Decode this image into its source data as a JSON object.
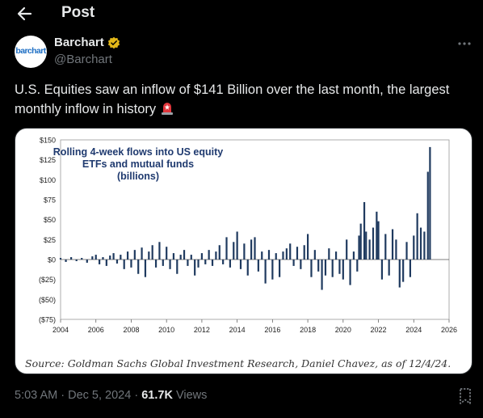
{
  "header": {
    "title": "Post",
    "back_icon": "arrow-left-icon"
  },
  "author": {
    "name": "Barchart",
    "handle": "@Barchart",
    "avatar_text": "barchart",
    "verified_color": "#e2b719"
  },
  "post": {
    "text": "U.S. Equities saw an inflow of $141 Billion over the last month, the largest monthly inflow in history",
    "emoji": "rotating-light-icon"
  },
  "chart_data": {
    "type": "bar",
    "title": [
      "Rolling 4-week flows into US equity",
      "ETFs and mutual funds",
      "(billions)"
    ],
    "source": "Source: Goldman Sachs Global Investment Research, Daniel Chavez,  as of 12/4/24.",
    "ylim": [
      -75,
      150
    ],
    "xlim": [
      2004,
      2026
    ],
    "y_tick_labels": [
      "$150",
      "$125",
      "$100",
      "$75",
      "$50",
      "$25",
      "$0",
      "($25)",
      "($50)",
      "($75)"
    ],
    "y_tick_values": [
      150,
      125,
      100,
      75,
      50,
      25,
      0,
      -25,
      -50,
      -75
    ],
    "x_tick_labels": [
      "2004",
      "2006",
      "2008",
      "2010",
      "2012",
      "2014",
      "2016",
      "2018",
      "2020",
      "2022",
      "2024",
      "2026"
    ],
    "x_tick_values": [
      2004,
      2006,
      2008,
      2010,
      2012,
      2014,
      2016,
      2018,
      2020,
      2022,
      2024,
      2026
    ],
    "bar_color": "#1f3a5f",
    "series": [
      {
        "points": [
          [
            2004.0,
            2
          ],
          [
            2004.3,
            -3
          ],
          [
            2004.6,
            3
          ],
          [
            2004.9,
            -2
          ],
          [
            2005.2,
            2
          ],
          [
            2005.5,
            -4
          ],
          [
            2005.8,
            4
          ],
          [
            2006.0,
            6
          ],
          [
            2006.2,
            -6
          ],
          [
            2006.4,
            3
          ],
          [
            2006.6,
            -8
          ],
          [
            2006.8,
            5
          ],
          [
            2007.0,
            8
          ],
          [
            2007.2,
            -5
          ],
          [
            2007.4,
            6
          ],
          [
            2007.6,
            -12
          ],
          [
            2007.8,
            10
          ],
          [
            2008.0,
            -10
          ],
          [
            2008.2,
            12
          ],
          [
            2008.4,
            -18
          ],
          [
            2008.6,
            15
          ],
          [
            2008.8,
            -22
          ],
          [
            2009.0,
            10
          ],
          [
            2009.2,
            18
          ],
          [
            2009.4,
            -10
          ],
          [
            2009.6,
            22
          ],
          [
            2009.8,
            -8
          ],
          [
            2010.0,
            16
          ],
          [
            2010.2,
            -12
          ],
          [
            2010.4,
            8
          ],
          [
            2010.6,
            -18
          ],
          [
            2010.8,
            6
          ],
          [
            2011.0,
            12
          ],
          [
            2011.2,
            -8
          ],
          [
            2011.4,
            6
          ],
          [
            2011.6,
            -20
          ],
          [
            2011.8,
            -10
          ],
          [
            2012.0,
            8
          ],
          [
            2012.2,
            -6
          ],
          [
            2012.4,
            12
          ],
          [
            2012.6,
            -8
          ],
          [
            2012.8,
            10
          ],
          [
            2013.0,
            18
          ],
          [
            2013.2,
            -6
          ],
          [
            2013.4,
            28
          ],
          [
            2013.6,
            -10
          ],
          [
            2013.8,
            22
          ],
          [
            2014.0,
            35
          ],
          [
            2014.2,
            -12
          ],
          [
            2014.4,
            20
          ],
          [
            2014.6,
            -20
          ],
          [
            2014.8,
            25
          ],
          [
            2015.0,
            28
          ],
          [
            2015.2,
            -15
          ],
          [
            2015.4,
            10
          ],
          [
            2015.6,
            -30
          ],
          [
            2015.8,
            12
          ],
          [
            2016.0,
            -25
          ],
          [
            2016.2,
            8
          ],
          [
            2016.4,
            -22
          ],
          [
            2016.6,
            10
          ],
          [
            2016.8,
            14
          ],
          [
            2017.0,
            20
          ],
          [
            2017.2,
            -8
          ],
          [
            2017.4,
            16
          ],
          [
            2017.6,
            -12
          ],
          [
            2017.8,
            18
          ],
          [
            2018.0,
            32
          ],
          [
            2018.2,
            -22
          ],
          [
            2018.4,
            12
          ],
          [
            2018.6,
            -15
          ],
          [
            2018.8,
            -38
          ],
          [
            2019.0,
            -20
          ],
          [
            2019.2,
            14
          ],
          [
            2019.4,
            -22
          ],
          [
            2019.6,
            10
          ],
          [
            2019.8,
            -18
          ],
          [
            2020.0,
            -25
          ],
          [
            2020.2,
            25
          ],
          [
            2020.4,
            -32
          ],
          [
            2020.6,
            10
          ],
          [
            2020.8,
            -15
          ],
          [
            2020.9,
            30
          ],
          [
            2021.0,
            45
          ],
          [
            2021.2,
            72
          ],
          [
            2021.3,
            35
          ],
          [
            2021.5,
            25
          ],
          [
            2021.7,
            40
          ],
          [
            2021.9,
            60
          ],
          [
            2022.0,
            48
          ],
          [
            2022.2,
            -25
          ],
          [
            2022.4,
            32
          ],
          [
            2022.6,
            -20
          ],
          [
            2022.8,
            38
          ],
          [
            2023.0,
            25
          ],
          [
            2023.2,
            -35
          ],
          [
            2023.4,
            -28
          ],
          [
            2023.6,
            22
          ],
          [
            2023.8,
            -22
          ],
          [
            2024.0,
            30
          ],
          [
            2024.2,
            58
          ],
          [
            2024.4,
            40
          ],
          [
            2024.6,
            35
          ],
          [
            2024.8,
            110
          ],
          [
            2024.92,
            141
          ]
        ]
      }
    ]
  },
  "meta": {
    "time": "5:03 AM",
    "date": "Dec 5, 2024",
    "separator": "·",
    "views_count": "61.7K",
    "views_label": "Views"
  }
}
